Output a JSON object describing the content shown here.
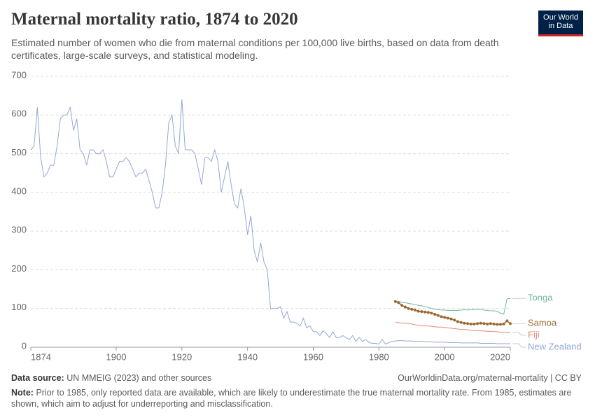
{
  "chart_data": {
    "type": "line",
    "title": "Maternal mortality ratio, 1874 to 2020",
    "subtitle": "Estimated number of women who die from maternal conditions per 100,000 live births, based on data from death certificates, large-scale surveys, and statistical modeling.",
    "logo": [
      "Our World",
      "in Data"
    ],
    "source_label": "Data source:",
    "source": "UN MMEIG (2023) and other sources",
    "url": "OurWorldinData.org/maternal-mortality | CC BY",
    "note_label": "Note:",
    "note": "Prior to 1985, only reported data are available, which are likely to underestimate the true maternal mortality rate. From 1985, estimates are shown, which aim to adjust for underreporting and misclassification.",
    "xlim": [
      1874,
      2020
    ],
    "ylim": [
      0,
      700
    ],
    "xticks": [
      1874,
      1900,
      1920,
      1940,
      1960,
      1980,
      2000,
      2020
    ],
    "yticks": [
      0,
      100,
      200,
      300,
      400,
      500,
      600,
      700
    ],
    "grid": true,
    "series": [
      {
        "name": "Tonga",
        "color": "#72b59f",
        "markers": false,
        "x": [
          1985,
          1986,
          1987,
          1988,
          1989,
          1990,
          1991,
          1992,
          1993,
          1994,
          1995,
          1996,
          1997,
          1998,
          1999,
          2000,
          2001,
          2002,
          2003,
          2004,
          2005,
          2006,
          2007,
          2008,
          2009,
          2010,
          2011,
          2012,
          2013,
          2014,
          2015,
          2016,
          2017,
          2018,
          2019,
          2020
        ],
        "values": [
          120,
          118,
          116,
          115,
          113,
          112,
          110,
          108,
          107,
          105,
          103,
          100,
          98,
          97,
          96,
          96,
          95,
          95,
          95,
          95,
          96,
          97,
          96,
          97,
          97,
          98,
          98,
          96,
          95,
          94,
          94,
          93,
          88,
          85,
          125,
          126
        ]
      },
      {
        "name": "Samoa",
        "color": "#9a6a33",
        "markers": true,
        "x": [
          1985,
          1986,
          1987,
          1988,
          1989,
          1990,
          1991,
          1992,
          1993,
          1994,
          1995,
          1996,
          1997,
          1998,
          1999,
          2000,
          2001,
          2002,
          2003,
          2004,
          2005,
          2006,
          2007,
          2008,
          2009,
          2010,
          2011,
          2012,
          2013,
          2014,
          2015,
          2016,
          2017,
          2018,
          2019,
          2020
        ],
        "values": [
          118,
          115,
          108,
          104,
          100,
          98,
          96,
          93,
          92,
          91,
          90,
          88,
          85,
          82,
          79,
          77,
          75,
          73,
          70,
          66,
          64,
          62,
          61,
          60,
          60,
          61,
          62,
          61,
          60,
          61,
          60,
          59,
          59,
          60,
          68,
          61
        ]
      },
      {
        "name": "Fiji",
        "color": "#e08a72",
        "markers": false,
        "x": [
          1985,
          1986,
          1987,
          1988,
          1989,
          1990,
          1991,
          1992,
          1993,
          1994,
          1995,
          1996,
          1997,
          1998,
          1999,
          2000,
          2001,
          2002,
          2003,
          2004,
          2005,
          2006,
          2007,
          2008,
          2009,
          2010,
          2011,
          2012,
          2013,
          2014,
          2015,
          2016,
          2017,
          2018,
          2019,
          2020
        ],
        "values": [
          65,
          63,
          62,
          62,
          61,
          60,
          58,
          57,
          56,
          55,
          55,
          54,
          53,
          52,
          52,
          51,
          50,
          49,
          48,
          47,
          46,
          46,
          45,
          44,
          43,
          43,
          42,
          42,
          41,
          41,
          40,
          40,
          39,
          39,
          38,
          38
        ]
      },
      {
        "name": "New Zealand",
        "color": "#93a8d4",
        "markers": false,
        "x": [
          1874,
          1875,
          1876,
          1877,
          1878,
          1879,
          1880,
          1881,
          1882,
          1883,
          1884,
          1885,
          1886,
          1887,
          1888,
          1889,
          1890,
          1891,
          1892,
          1893,
          1894,
          1895,
          1896,
          1897,
          1898,
          1899,
          1900,
          1901,
          1902,
          1903,
          1904,
          1905,
          1906,
          1907,
          1908,
          1909,
          1910,
          1911,
          1912,
          1913,
          1914,
          1915,
          1916,
          1917,
          1918,
          1919,
          1920,
          1921,
          1922,
          1923,
          1924,
          1925,
          1926,
          1927,
          1928,
          1929,
          1930,
          1931,
          1932,
          1933,
          1934,
          1935,
          1936,
          1937,
          1938,
          1939,
          1940,
          1941,
          1942,
          1943,
          1944,
          1945,
          1946,
          1947,
          1948,
          1949,
          1950,
          1951,
          1952,
          1953,
          1954,
          1955,
          1956,
          1957,
          1958,
          1959,
          1960,
          1961,
          1962,
          1963,
          1964,
          1965,
          1966,
          1967,
          1968,
          1969,
          1970,
          1971,
          1972,
          1973,
          1974,
          1975,
          1976,
          1977,
          1978,
          1979,
          1980,
          1981,
          1982,
          1983,
          1984,
          1985,
          1986,
          1987,
          1988,
          1989,
          1990,
          1991,
          1992,
          1993,
          1994,
          1995,
          1996,
          1997,
          1998,
          1999,
          2000,
          2001,
          2002,
          2003,
          2004,
          2005,
          2006,
          2007,
          2008,
          2009,
          2010,
          2011,
          2012,
          2013,
          2014,
          2015,
          2016,
          2017,
          2018,
          2019,
          2020
        ],
        "values": [
          510,
          520,
          620,
          490,
          440,
          450,
          470,
          470,
          520,
          590,
          600,
          600,
          620,
          560,
          590,
          510,
          500,
          470,
          510,
          510,
          500,
          500,
          510,
          480,
          440,
          440,
          460,
          480,
          480,
          490,
          480,
          460,
          440,
          450,
          450,
          460,
          430,
          400,
          360,
          360,
          400,
          470,
          580,
          600,
          520,
          500,
          640,
          510,
          510,
          510,
          500,
          460,
          420,
          490,
          490,
          480,
          510,
          480,
          400,
          440,
          480,
          420,
          370,
          360,
          410,
          360,
          290,
          340,
          250,
          220,
          270,
          220,
          200,
          100,
          100,
          100,
          105,
          75,
          92,
          65,
          65,
          62,
          55,
          75,
          50,
          55,
          40,
          40,
          30,
          42,
          35,
          25,
          40,
          25,
          25,
          30,
          25,
          20,
          30,
          15,
          25,
          15,
          20,
          12,
          10,
          10,
          8,
          20,
          8,
          12,
          15,
          16,
          17,
          17,
          16,
          16,
          16,
          15,
          15,
          15,
          14,
          14,
          14,
          13,
          13,
          13,
          13,
          12,
          12,
          12,
          12,
          11,
          11,
          11,
          11,
          11,
          11,
          10,
          10,
          10,
          10,
          10,
          9,
          9,
          9,
          9,
          9
        ]
      }
    ]
  }
}
